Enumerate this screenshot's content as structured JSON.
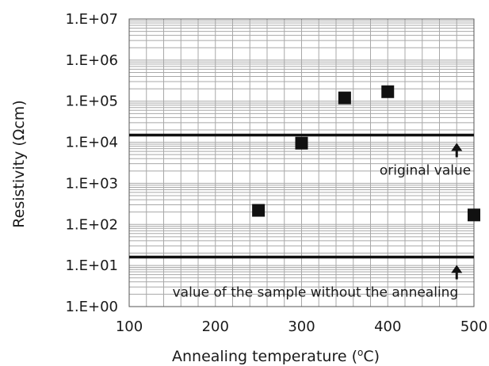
{
  "chart_data": {
    "type": "scatter",
    "xlabel_main": "Annealing temperature (",
    "xlabel_sup": "o",
    "xlabel_end": "C)",
    "ylabel_main": "Resistivity (",
    "ylabel_unit": "Ω",
    "ylabel_end": "cm)",
    "xlim": [
      100,
      500
    ],
    "ylim": [
      1,
      10000000
    ],
    "y_scale": "log",
    "x_ticks": [
      100,
      200,
      300,
      400,
      500
    ],
    "x_tick_labels": [
      "100",
      "200",
      "300",
      "400",
      "500"
    ],
    "y_ticks": [
      1,
      10,
      100,
      1000,
      10000,
      100000,
      1000000,
      10000000
    ],
    "y_tick_labels": [
      "1.E+00",
      "1.E+01",
      "1.E+02",
      "1.E+03",
      "1.E+04",
      "1.E+05",
      "1.E+06",
      "1.E+07"
    ],
    "grid": true,
    "series": [
      {
        "marker": "square",
        "color": "#111111",
        "points": [
          {
            "x": 250,
            "y": 220
          },
          {
            "x": 300,
            "y": 9500
          },
          {
            "x": 350,
            "y": 120000
          },
          {
            "x": 400,
            "y": 170000
          },
          {
            "x": 500,
            "y": 170
          }
        ]
      }
    ],
    "reference_lines": [
      {
        "y": 15000,
        "label": "original value"
      },
      {
        "y": 16,
        "label": "value of the sample without the annealing"
      }
    ],
    "arrow_x": 480
  }
}
